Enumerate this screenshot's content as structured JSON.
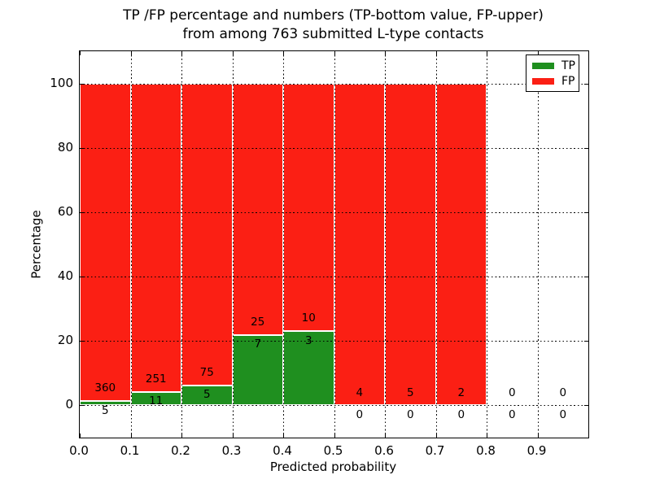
{
  "title": {
    "line1": "TP /FP percentage and numbers (TP-bottom value, FP-upper)",
    "line2": "from among 763 submitted L-type contacts"
  },
  "axes": {
    "xlabel": "Predicted probability",
    "ylabel": "Percentage"
  },
  "legend": {
    "items": [
      {
        "label": "TP",
        "color": "#1f8f1f"
      },
      {
        "label": "FP",
        "color": "#fb1f14"
      }
    ]
  },
  "chart_data": {
    "type": "bar",
    "stacked": true,
    "title": "TP /FP percentage and numbers (TP-bottom value, FP-upper) from among 763 submitted L-type contacts",
    "xlabel": "Predicted probability",
    "ylabel": "Percentage",
    "xlim": [
      0.0,
      1.0
    ],
    "ylim": [
      -10,
      110
    ],
    "grid": true,
    "legend_position": "upper right",
    "total_contacts": 763,
    "bin_width": 0.1,
    "bin_starts": [
      0.0,
      0.1,
      0.2,
      0.3,
      0.4,
      0.5,
      0.6,
      0.7,
      0.8,
      0.9
    ],
    "x_ticks": [
      0.0,
      0.1,
      0.2,
      0.3,
      0.4,
      0.5,
      0.6,
      0.7,
      0.8,
      0.9
    ],
    "x_tick_labels": [
      "0.0",
      "0.1",
      "0.2",
      "0.3",
      "0.4",
      "0.5",
      "0.6",
      "0.7",
      "0.8",
      "0.9"
    ],
    "y_ticks": [
      0,
      20,
      40,
      60,
      80,
      100
    ],
    "y_tick_labels": [
      "0",
      "20",
      "40",
      "60",
      "80",
      "100"
    ],
    "series": [
      {
        "name": "TP",
        "color": "#1f8f1f",
        "counts": [
          5,
          11,
          5,
          7,
          3,
          0,
          0,
          0,
          0,
          0
        ]
      },
      {
        "name": "FP",
        "color": "#fb1f14",
        "counts": [
          360,
          251,
          75,
          25,
          10,
          4,
          5,
          2,
          0,
          0
        ]
      }
    ],
    "bar_total_percent": 100,
    "tp_percent_per_bin": [
      1.37,
      4.2,
      6.25,
      21.88,
      23.08,
      0,
      0,
      0,
      null,
      null
    ]
  }
}
